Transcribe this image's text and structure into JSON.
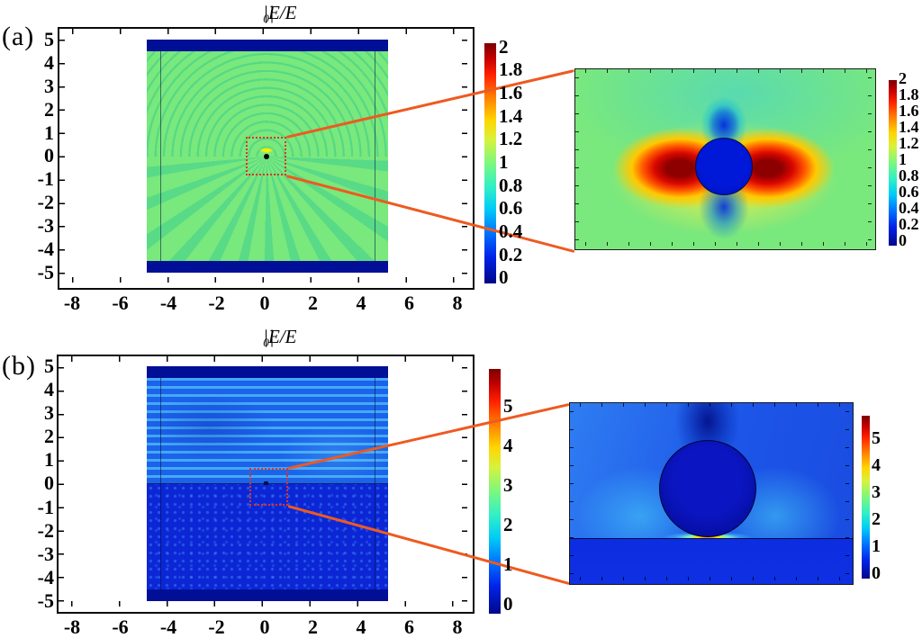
{
  "panel_a": {
    "label": "(a)",
    "title": {
      "pre": "|E/E",
      "sub": "0",
      "post": "|"
    },
    "x_tick_labels": [
      "-8",
      "-6",
      "-4",
      "-2",
      "0",
      "2",
      "4",
      "6",
      "8"
    ],
    "y_tick_labels": [
      "5",
      "4",
      "3",
      "2",
      "1",
      "0",
      "-1",
      "-2",
      "-3",
      "-4",
      "-5"
    ],
    "colorbar_labels": [
      "2",
      "1.8",
      "1.6",
      "1.4",
      "1.2",
      "1",
      "0.8",
      "0.6",
      "0.4",
      "0.2",
      "0"
    ],
    "inset_colorbar_labels": [
      "2",
      "1.8",
      "1.6",
      "1.4",
      "1.2",
      "1",
      "0.8",
      "0.6",
      "0.4",
      "0.2",
      "0"
    ]
  },
  "panel_b": {
    "label": "(b)",
    "title": {
      "pre": "|E/E",
      "sub": "0",
      "post": "|"
    },
    "x_tick_labels": [
      "-8",
      "-6",
      "-4",
      "-2",
      "0",
      "2",
      "4",
      "6",
      "8"
    ],
    "y_tick_labels": [
      "5",
      "4",
      "3",
      "2",
      "1",
      "0",
      "-1",
      "-2",
      "-3",
      "-4",
      "-5"
    ],
    "colorbar_labels": [
      "5",
      "4",
      "3",
      "2",
      "1",
      "0"
    ],
    "inset_colorbar_labels": [
      "5",
      "4",
      "3",
      "2",
      "1",
      "0"
    ]
  },
  "chart_data": [
    {
      "panel": "a",
      "type": "heatmap",
      "title": "|E/E0|",
      "x_ticks": [
        -8,
        -6,
        -4,
        -2,
        0,
        2,
        4,
        6,
        8
      ],
      "y_ticks": [
        5,
        4,
        3,
        2,
        1,
        0,
        -1,
        -2,
        -3,
        -4,
        -5
      ],
      "xlim": [
        -8.8,
        8.8
      ],
      "ylim": [
        -5.6,
        5.6
      ],
      "field_extent": {
        "x": [
          -5,
          5
        ],
        "y": [
          -5,
          5
        ]
      },
      "pml_bands_y": [
        [
          4.5,
          5.0
        ],
        [
          -5.0,
          -4.5
        ]
      ],
      "inner_boundary_x": [
        -4.5,
        4.5
      ],
      "colormap": "jet",
      "colorbar_range": [
        0,
        2
      ],
      "colorbar_ticks": [
        0,
        0.2,
        0.4,
        0.6,
        0.8,
        1,
        1.2,
        1.4,
        1.6,
        1.8,
        2
      ],
      "background_value": 1,
      "zoom_box": {
        "x": [
          -0.85,
          0.85
        ],
        "y": [
          -0.8,
          0.85
        ]
      },
      "description": "Normalized electric field |E/E0| of a nanosphere at the origin in a homogeneous medium: uniform background ~1 (green), concentric scattered wavefronts above the particle, radial interference spokes below, dark PML bands at y=+/-5 to +/-4.5.",
      "inset": {
        "colormap": "jet",
        "colorbar_range": [
          0,
          2
        ],
        "colorbar_ticks": [
          0,
          0.2,
          0.4,
          0.6,
          0.8,
          1,
          1.2,
          1.4,
          1.6,
          1.8,
          2
        ],
        "description": "Near-field dipole pattern: enhancement lobes up to |E/E0|~2 (dark red) on the left and right of the sphere, suppressed field ~0.2-0.5 (blue/cyan) above and below, near-zero field inside the sphere (dark blue circle)."
      }
    },
    {
      "panel": "b",
      "type": "heatmap",
      "title": "|E/E0|",
      "x_ticks": [
        -8,
        -6,
        -4,
        -2,
        0,
        2,
        4,
        6,
        8
      ],
      "y_ticks": [
        5,
        4,
        3,
        2,
        1,
        0,
        -1,
        -2,
        -3,
        -4,
        -5
      ],
      "xlim": [
        -8.8,
        8.8
      ],
      "ylim": [
        -5.6,
        5.6
      ],
      "field_extent": {
        "x": [
          -5,
          5
        ],
        "y": [
          -5,
          5
        ]
      },
      "substrate_interface_y": 0,
      "pml_bands_y": [
        [
          4.5,
          5.0
        ],
        [
          -5.0,
          -4.5
        ]
      ],
      "inner_boundary_x": [
        -4.5,
        4.5
      ],
      "colormap": "jet",
      "colorbar_range": [
        0,
        5.9
      ],
      "colorbar_ticks": [
        0,
        1,
        2,
        3,
        4,
        5
      ],
      "zoom_box": {
        "x": [
          -0.75,
          0.85
        ],
        "y": [
          -0.95,
          0.65
        ]
      },
      "description": "Normalized electric field |E/E0| of a nanosphere on a substrate: horizontal standing-wave stripes (incident + reflected field, |E/E0|~1-2) above the interface at y=0, weaker speckled transmitted field (dark blue) below it.",
      "inset": {
        "colormap": "jet",
        "colorbar_range": [
          0,
          5.8
        ],
        "colorbar_ticks": [
          0,
          1,
          2,
          3,
          4,
          5
        ],
        "description": "Sphere resting on the substrate: strong hot spot up to |E/E0|~5.5 (yellow/orange) in the gap at the sphere-substrate contact point, cyan side glow, dark low-field plume above the sphere, near-zero field inside the sphere."
      }
    }
  ],
  "annotation_colors": {
    "connector_line": "#ee5a20",
    "zoom_box": "#e8321e",
    "pml_band": "#000f96"
  }
}
